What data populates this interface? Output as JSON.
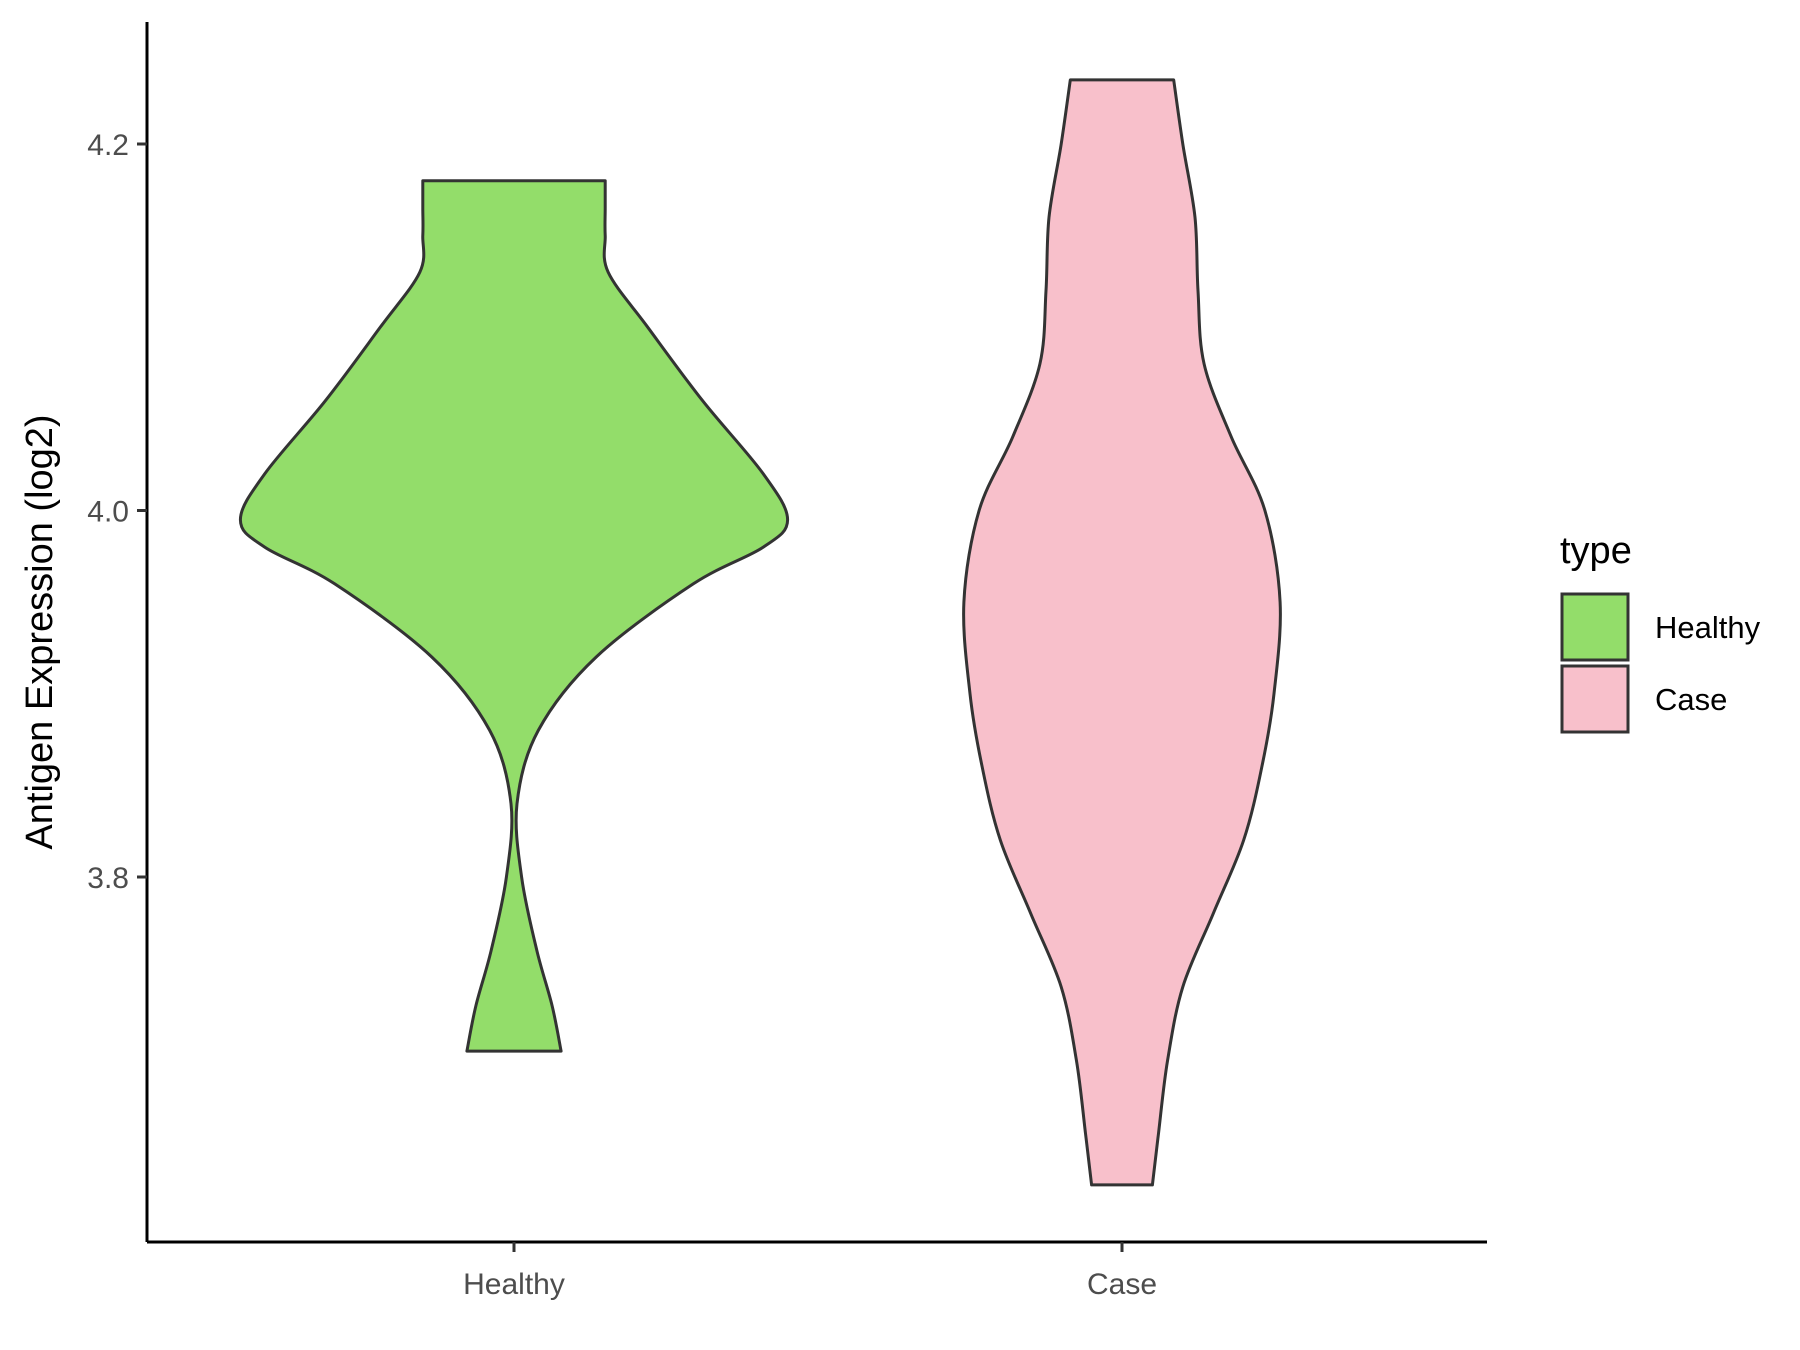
{
  "chart_data": {
    "type": "violin",
    "ylabel": "Antigen Expression (log2)",
    "xlabel": "",
    "categories": [
      "Healthy",
      "Case"
    ],
    "y_ticks": [
      3.8,
      4.0,
      4.2
    ],
    "ylim": [
      3.6,
      4.27
    ],
    "grid": false,
    "legend": {
      "title": "type",
      "position": "right",
      "entries": [
        {
          "label": "Healthy",
          "color": "#93dd6a"
        },
        {
          "label": "Case",
          "color": "#f8c0cb"
        }
      ]
    },
    "series": [
      {
        "name": "Healthy",
        "color": "#93dd6a",
        "profile": [
          {
            "y": 3.705,
            "w": 0.155
          },
          {
            "y": 3.73,
            "w": 0.125
          },
          {
            "y": 3.76,
            "w": 0.075
          },
          {
            "y": 3.8,
            "w": 0.025
          },
          {
            "y": 3.84,
            "w": 0.01
          },
          {
            "y": 3.88,
            "w": 0.08
          },
          {
            "y": 3.92,
            "w": 0.27
          },
          {
            "y": 3.96,
            "w": 0.59
          },
          {
            "y": 3.98,
            "w": 0.82
          },
          {
            "y": 3.995,
            "w": 0.9
          },
          {
            "y": 4.02,
            "w": 0.82
          },
          {
            "y": 4.06,
            "w": 0.62
          },
          {
            "y": 4.1,
            "w": 0.44
          },
          {
            "y": 4.13,
            "w": 0.31
          },
          {
            "y": 4.15,
            "w": 0.3
          },
          {
            "y": 4.165,
            "w": 0.3
          },
          {
            "y": 4.18,
            "w": 0.3
          }
        ]
      },
      {
        "name": "Case",
        "color": "#f8c0cb",
        "profile": [
          {
            "y": 3.632,
            "w": 0.1
          },
          {
            "y": 3.66,
            "w": 0.12
          },
          {
            "y": 3.7,
            "w": 0.15
          },
          {
            "y": 3.74,
            "w": 0.2
          },
          {
            "y": 3.78,
            "w": 0.3
          },
          {
            "y": 3.82,
            "w": 0.4
          },
          {
            "y": 3.86,
            "w": 0.46
          },
          {
            "y": 3.9,
            "w": 0.5
          },
          {
            "y": 3.95,
            "w": 0.52
          },
          {
            "y": 4.0,
            "w": 0.47
          },
          {
            "y": 4.04,
            "w": 0.36
          },
          {
            "y": 4.08,
            "w": 0.27
          },
          {
            "y": 4.12,
            "w": 0.25
          },
          {
            "y": 4.16,
            "w": 0.24
          },
          {
            "y": 4.2,
            "w": 0.2
          },
          {
            "y": 4.235,
            "w": 0.17
          }
        ]
      }
    ]
  }
}
